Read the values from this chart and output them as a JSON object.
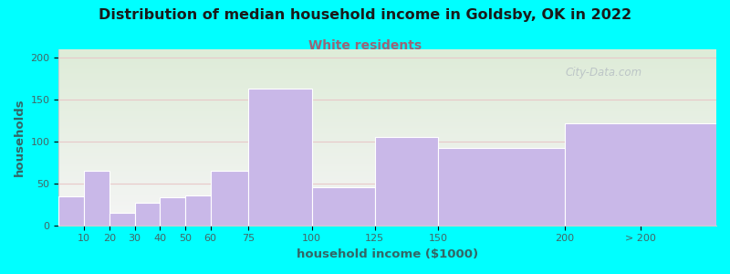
{
  "title": "Distribution of median household income in Goldsby, OK in 2022",
  "subtitle": "White residents",
  "xlabel": "household income ($1000)",
  "ylabel": "households",
  "categories": [
    "10",
    "20",
    "30",
    "40",
    "50",
    "60",
    "75",
    "100",
    "125",
    "150",
    "200",
    "> 200"
  ],
  "values": [
    35,
    65,
    15,
    27,
    33,
    36,
    65,
    163,
    46,
    105,
    92,
    122
  ],
  "left_edges": [
    0,
    10,
    20,
    30,
    40,
    50,
    60,
    75,
    100,
    125,
    150,
    200
  ],
  "widths": [
    10,
    10,
    10,
    10,
    10,
    10,
    15,
    25,
    25,
    25,
    50,
    60
  ],
  "bar_color": "#c9b8e8",
  "bar_edge_color": "#ffffff",
  "title_color": "#1a1a1a",
  "subtitle_color": "#996677",
  "background_color": "#00ffff",
  "bg_gradient_top": "#deecd8",
  "bg_gradient_bottom": "#f5f5f5",
  "ylabel_color": "#336666",
  "xlabel_color": "#336666",
  "tick_color": "#446666",
  "grid_color": "#e8c8c8",
  "yticks": [
    0,
    50,
    100,
    150,
    200
  ],
  "ylim": [
    0,
    210
  ],
  "xlim": [
    0,
    260
  ],
  "xtick_positions": [
    10,
    20,
    30,
    40,
    50,
    60,
    75,
    100,
    125,
    150,
    200,
    230
  ],
  "xtick_labels": [
    "10",
    "20",
    "30",
    "40",
    "50",
    "60",
    "75",
    "100",
    "125",
    "150",
    "200",
    "> 200"
  ],
  "watermark": "City-Data.com"
}
